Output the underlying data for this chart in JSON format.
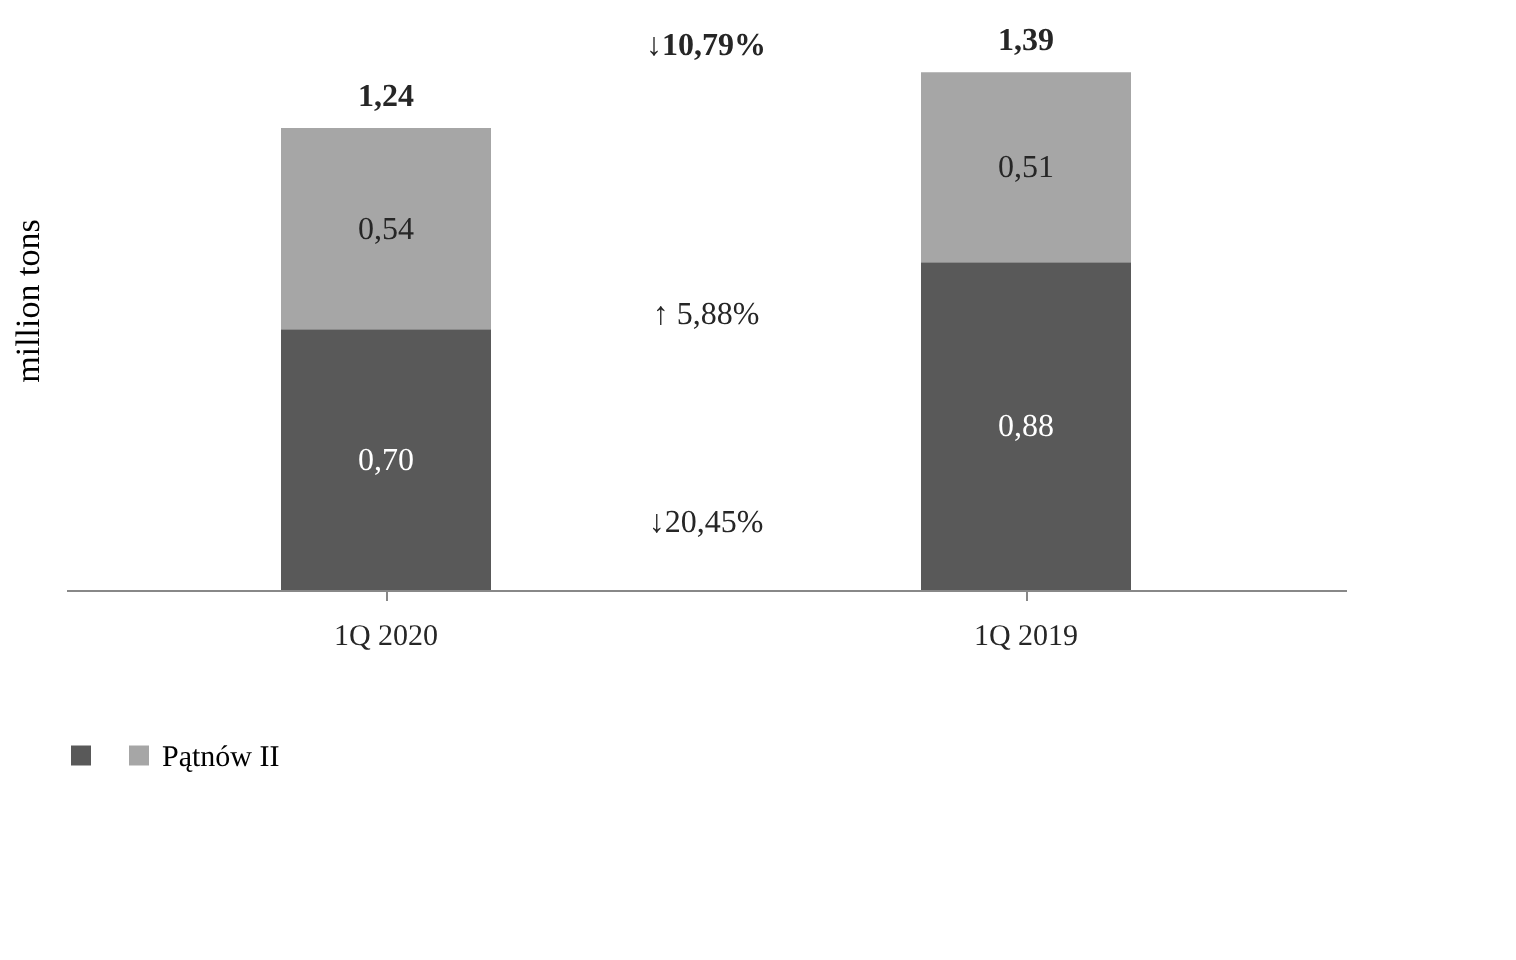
{
  "chart_data": {
    "type": "bar",
    "stacked": true,
    "categories": [
      "1Q 2020",
      "1Q 2019"
    ],
    "ylabel": "million tons",
    "series": [
      {
        "color": "#595959",
        "values": [
          0.7,
          0.88
        ],
        "value_labels": [
          "0,70",
          "0,88"
        ]
      },
      {
        "name": "Pątnów II",
        "color": "#a6a6a6",
        "values": [
          0.54,
          0.51
        ],
        "value_labels": [
          "0,54",
          "0,51"
        ]
      }
    ],
    "totals": [
      "1,24",
      "1,39"
    ],
    "annotations": [
      "↓10,79%",
      "↑ 5,88%",
      "↓20,45%"
    ],
    "tick_labels": "x",
    "legend": "bottom",
    "grid": false
  }
}
